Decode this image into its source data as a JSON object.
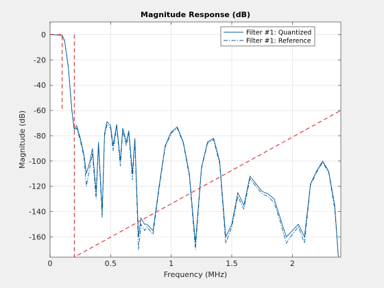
{
  "chart_data": {
    "type": "line",
    "title": "Magnitude Response (dB)",
    "xlabel": "Frequency (MHz)",
    "ylabel": "Magnitude (dB)",
    "xlim": [
      0,
      2.4
    ],
    "ylim": [
      -176,
      10
    ],
    "grid": true,
    "legend_position": "top-right",
    "xticks": [
      0,
      0.5,
      1,
      1.5,
      2
    ],
    "xtick_labels": [
      "0",
      "0.5",
      "1",
      "1.5",
      "2"
    ],
    "yticks": [
      0,
      -20,
      -40,
      -60,
      -80,
      -100,
      -120,
      -140,
      -160
    ],
    "ytick_labels": [
      "0",
      "-20",
      "-40",
      "-60",
      "-80",
      "-100",
      "-120",
      "-140",
      "-160"
    ],
    "series": [
      {
        "name": "Filter #1: Quantized",
        "color": "#005a9c",
        "style": "solid",
        "x": [
          0,
          0.1,
          0.12,
          0.15,
          0.18,
          0.2,
          0.22,
          0.25,
          0.28,
          0.3,
          0.33,
          0.35,
          0.38,
          0.4,
          0.43,
          0.45,
          0.47,
          0.5,
          0.52,
          0.55,
          0.58,
          0.6,
          0.63,
          0.65,
          0.68,
          0.7,
          0.73,
          0.75,
          0.78,
          0.8,
          0.85,
          0.9,
          0.95,
          1.0,
          1.05,
          1.1,
          1.15,
          1.2,
          1.25,
          1.3,
          1.35,
          1.4,
          1.45,
          1.5,
          1.55,
          1.6,
          1.65,
          1.7,
          1.75,
          1.8,
          1.85,
          1.9,
          1.95,
          2.0,
          2.05,
          2.1,
          2.15,
          2.2,
          2.25,
          2.3,
          2.35,
          2.38
        ],
        "y": [
          0,
          -0.5,
          -5,
          -25,
          -60,
          -75,
          -72,
          -82,
          -95,
          -110,
          -100,
          -90,
          -125,
          -85,
          -140,
          -78,
          -69,
          -72,
          -88,
          -71,
          -100,
          -74,
          -85,
          -76,
          -110,
          -82,
          -160,
          -145,
          -150,
          -150,
          -155,
          -120,
          -88,
          -77,
          -73,
          -85,
          -110,
          -165,
          -105,
          -85,
          -82,
          -100,
          -160,
          -150,
          -125,
          -135,
          -112,
          -118,
          -124,
          -126,
          -130,
          -145,
          -160,
          -155,
          -150,
          -160,
          -118,
          -108,
          -100,
          -108,
          -135,
          -176
        ]
      },
      {
        "name": "Filter #1: Reference",
        "color": "#005a9c",
        "style": "dashdot",
        "x": [
          0,
          0.1,
          0.12,
          0.15,
          0.18,
          0.2,
          0.22,
          0.25,
          0.28,
          0.3,
          0.33,
          0.35,
          0.38,
          0.4,
          0.43,
          0.45,
          0.47,
          0.5,
          0.52,
          0.55,
          0.58,
          0.6,
          0.63,
          0.65,
          0.68,
          0.7,
          0.73,
          0.75,
          0.78,
          0.8,
          0.85,
          0.9,
          0.95,
          1.0,
          1.05,
          1.1,
          1.15,
          1.2,
          1.25,
          1.3,
          1.35,
          1.4,
          1.45,
          1.5,
          1.55,
          1.6,
          1.65,
          1.7,
          1.75,
          1.8,
          1.85,
          1.9,
          1.95,
          2.0,
          2.05,
          2.1,
          2.15,
          2.2,
          2.25,
          2.3,
          2.35,
          2.38
        ],
        "y": [
          0,
          -0.5,
          -5,
          -25,
          -60,
          -76,
          -74,
          -84,
          -97,
          -120,
          -104,
          -94,
          -130,
          -88,
          -145,
          -80,
          -71,
          -74,
          -92,
          -73,
          -104,
          -76,
          -88,
          -78,
          -115,
          -84,
          -170,
          -150,
          -155,
          -152,
          -158,
          -122,
          -89,
          -78,
          -74,
          -86,
          -112,
          -170,
          -106,
          -86,
          -83,
          -102,
          -165,
          -152,
          -128,
          -138,
          -114,
          -120,
          -126,
          -128,
          -133,
          -148,
          -165,
          -158,
          -152,
          -165,
          -119,
          -109,
          -101,
          -109,
          -138,
          -176
        ]
      }
    ],
    "mask_lines": [
      {
        "x": [
          0,
          0.1,
          0.1
        ],
        "y": [
          0,
          0,
          -60
        ]
      },
      {
        "x": [
          0.2,
          0.2,
          2.4
        ],
        "y": [
          0,
          -176,
          -60
        ]
      }
    ],
    "mask_color": "#d6272b"
  }
}
